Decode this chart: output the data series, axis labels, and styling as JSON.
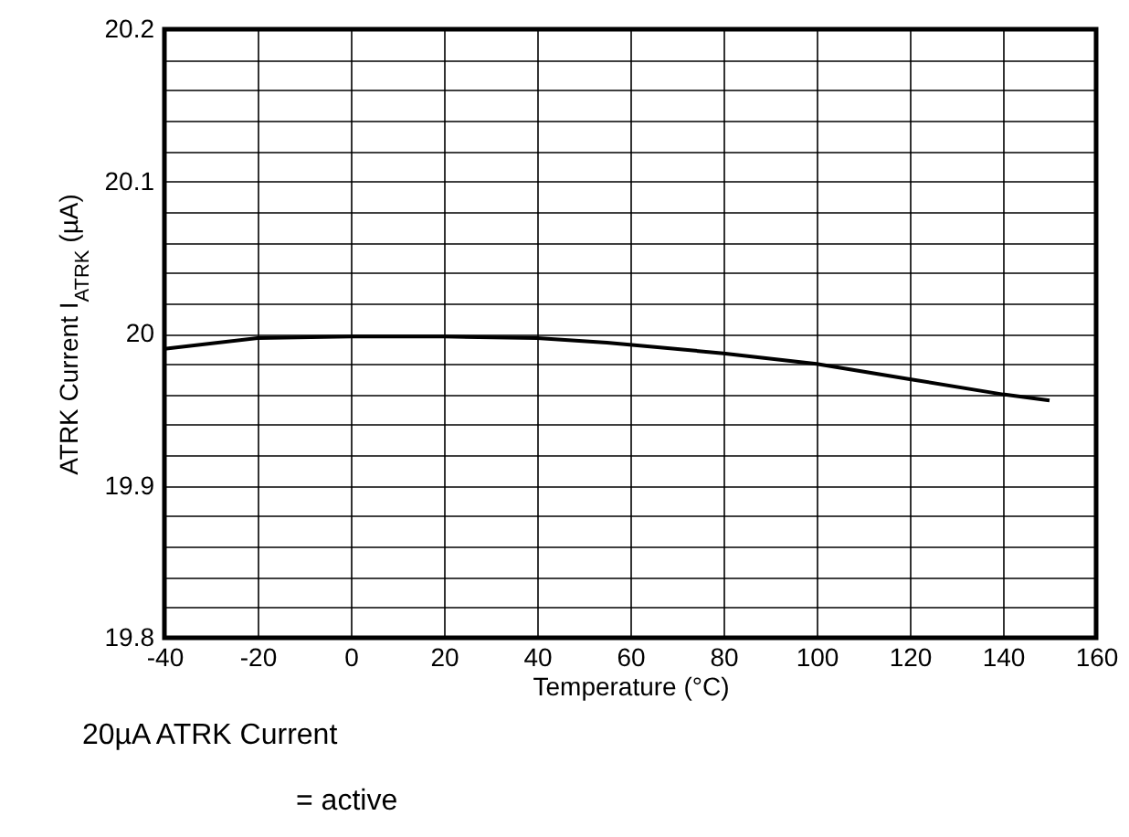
{
  "chart_data": {
    "type": "line",
    "xlabel": "Temperature (°C)",
    "ylabel": "ATRK Current I$_{ATRK}$ (µA)",
    "x": [
      -40,
      -20,
      0,
      20,
      40,
      55,
      80,
      100,
      120,
      140,
      150
    ],
    "series": [
      {
        "color": "#000000",
        "values": [
          19.99,
          19.997,
          19.998,
          19.998,
          19.997,
          19.994,
          19.987,
          19.98,
          19.97,
          19.96,
          19.956
        ]
      }
    ],
    "xlim": [
      -40,
      160
    ],
    "xticks": [
      -40,
      -20,
      0,
      20,
      40,
      60,
      80,
      100,
      120,
      140,
      160
    ],
    "ylim": [
      19.8,
      20.2
    ],
    "yticks": [
      19.8,
      {
        "value": 19.82,
        "label": null
      },
      {
        "value": 19.84,
        "label": null
      },
      {
        "value": 19.86,
        "label": null
      },
      {
        "value": 19.88,
        "label": null
      },
      19.9,
      {
        "value": 19.92,
        "label": null
      },
      {
        "value": 19.94,
        "label": null
      },
      {
        "value": 19.96,
        "label": null
      },
      {
        "value": 19.98,
        "label": null
      },
      20,
      {
        "value": 20.02,
        "label": null
      },
      {
        "value": 20.04,
        "label": null
      },
      {
        "value": 20.06,
        "label": null
      },
      {
        "value": 20.08,
        "label": null
      },
      20.1,
      {
        "value": 20.12,
        "label": null
      },
      {
        "value": 20.14,
        "label": null
      },
      {
        "value": 20.16,
        "label": null
      },
      {
        "value": 20.18,
        "label": null
      },
      20.2
    ],
    "grid": true,
    "marker": "none",
    "line_style": "solid",
    "annotations": [
      "20µA ATRK Current",
      "= active"
    ]
  }
}
